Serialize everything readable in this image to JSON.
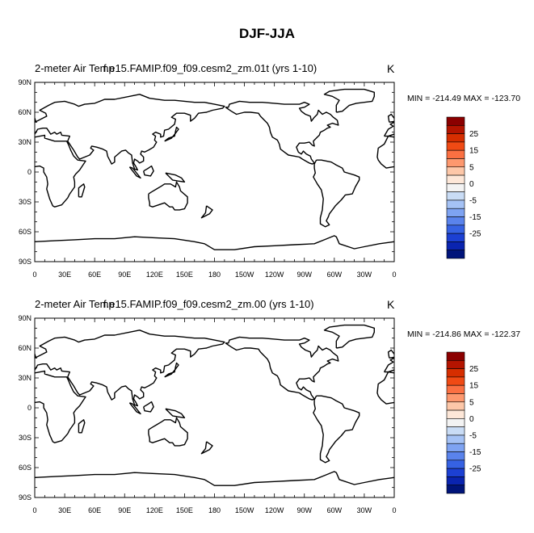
{
  "title": "DJF-JJA",
  "panels": [
    {
      "left_string": "2-meter Air Temp",
      "center_string": "f.e15.FAMIP.f09_f09.cesm2_zm.01t (yrs 1-10)",
      "right_string": "K",
      "stats": "MIN = -214.49 MAX = -123.70"
    },
    {
      "left_string": "2-meter Air Temp",
      "center_string": "f.e15.FAMIP.f09_f09.cesm2_zm.00 (yrs 1-10)",
      "right_string": "K",
      "stats": "MIN = -214.86 MAX = -122.37"
    }
  ],
  "lat_labels": [
    "90N",
    "60N",
    "30N",
    "0",
    "30S",
    "60S",
    "90S"
  ],
  "lon_labels": [
    "0",
    "30E",
    "60E",
    "90E",
    "120E",
    "150E",
    "180",
    "150W",
    "120W",
    "90W",
    "60W",
    "30W",
    "0"
  ],
  "colorbar": {
    "labels": [
      "25",
      "15",
      "5",
      "0",
      "-5",
      "-15",
      "-25"
    ],
    "colors": [
      "#8b0000",
      "#b41400",
      "#d62e00",
      "#f04a14",
      "#fb7042",
      "#fd986e",
      "#fdc7a8",
      "#fde7d8",
      "#f3f3f3",
      "#c9dcf5",
      "#a5c2f5",
      "#7ea3f2",
      "#5a83ec",
      "#3662e3",
      "#1c40d3",
      "#0a24b0",
      "#00147a"
    ]
  }
}
